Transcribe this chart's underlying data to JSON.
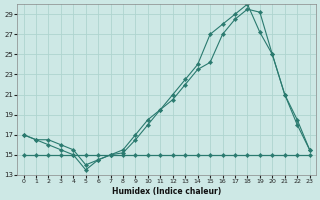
{
  "xlabel": "Humidex (Indice chaleur)",
  "bg_color": "#cde8e5",
  "line_color": "#2a7a6f",
  "grid_color": "#afd4cf",
  "xlim": [
    -0.5,
    23.5
  ],
  "ylim": [
    13,
    30
  ],
  "xticks": [
    0,
    1,
    2,
    3,
    4,
    5,
    6,
    7,
    8,
    9,
    10,
    11,
    12,
    13,
    14,
    15,
    16,
    17,
    18,
    19,
    20,
    21,
    22,
    23
  ],
  "yticks": [
    13,
    15,
    17,
    19,
    21,
    23,
    25,
    27,
    29
  ],
  "line1_y": [
    17.0,
    16.5,
    16.5,
    16.0,
    15.5,
    14.0,
    14.5,
    15.0,
    15.2,
    16.5,
    18.0,
    19.5,
    20.5,
    22.0,
    23.5,
    24.2,
    27.0,
    28.5,
    29.5,
    29.2,
    25.0,
    21.0,
    18.5,
    15.5
  ],
  "line2_y": [
    15.0,
    15.0,
    15.0,
    15.0,
    15.0,
    15.0,
    15.0,
    15.0,
    15.0,
    15.0,
    15.0,
    15.0,
    15.0,
    15.0,
    15.0,
    15.0,
    15.0,
    15.0,
    15.0,
    15.0,
    15.0,
    15.0,
    15.0,
    15.0
  ],
  "line3_y": [
    17.0,
    16.5,
    16.0,
    15.5,
    15.0,
    13.5,
    14.5,
    15.0,
    15.5,
    17.0,
    18.5,
    19.5,
    21.0,
    22.5,
    24.0,
    27.0,
    28.0,
    29.0,
    30.0,
    27.2,
    25.0,
    21.0,
    18.0,
    15.5
  ]
}
